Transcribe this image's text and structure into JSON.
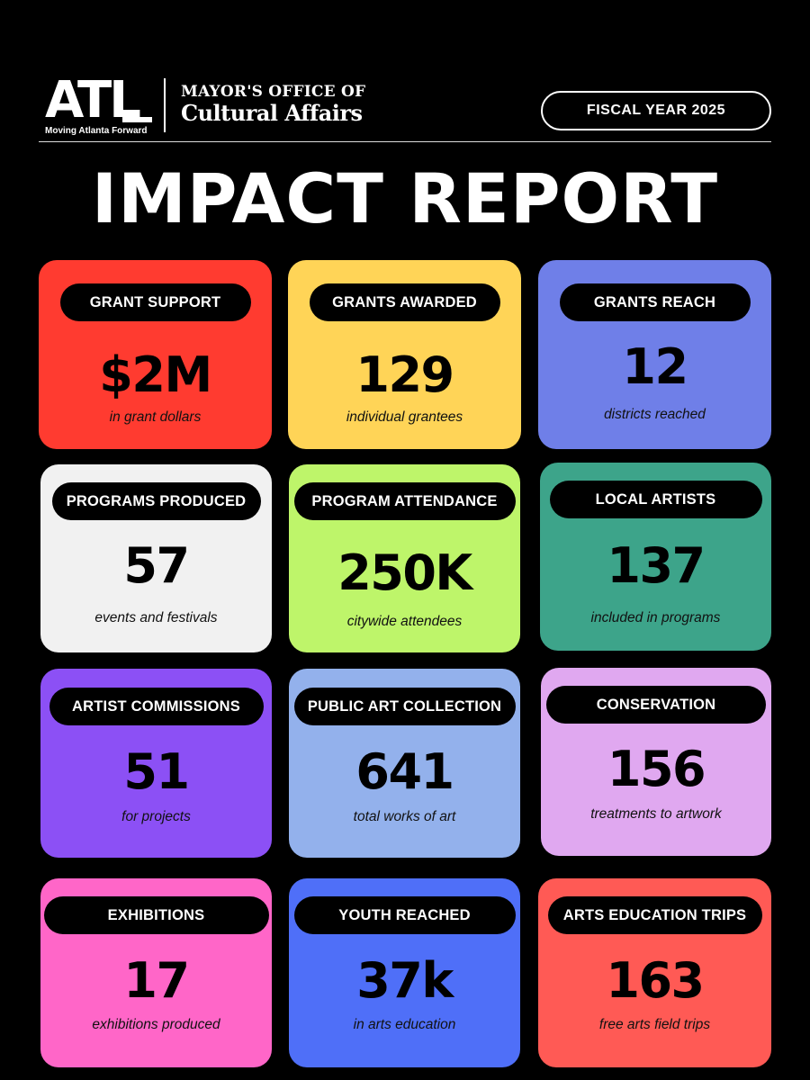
{
  "header": {
    "logo_text": "ATL",
    "tagline": "Moving Atlanta Forward",
    "office_line1": "MAYOR'S OFFICE OF",
    "office_line2": "Cultural Affairs",
    "fiscal_year": "FISCAL YEAR 2025"
  },
  "title": "IMPACT REPORT",
  "cards": [
    {
      "label": "GRANT SUPPORT",
      "value": "$2M",
      "caption": "in grant dollars",
      "color": "#FF3B30"
    },
    {
      "label": "GRANTS AWARDED",
      "value": "129",
      "caption": "individual grantees",
      "color": "#FFD457"
    },
    {
      "label": "GRANTS REACH",
      "value": "12",
      "caption": "districts reached",
      "color": "#6F7FE8"
    },
    {
      "label": "PROGRAMS PRODUCED",
      "value": "57",
      "caption": "events and festivals",
      "color": "#F1F1F1"
    },
    {
      "label": "PROGRAM ATTENDANCE",
      "value": "250K",
      "caption": "citywide attendees",
      "color": "#BEF56A"
    },
    {
      "label": "LOCAL ARTISTS",
      "value": "137",
      "caption": "included in programs",
      "color": "#3DA48A"
    },
    {
      "label": "ARTIST COMMISSIONS",
      "value": "51",
      "caption": "for projects",
      "color": "#8C50F5"
    },
    {
      "label": "PUBLIC ART COLLECTION",
      "value": "641",
      "caption": "total works of art",
      "color": "#93B1EC"
    },
    {
      "label": "CONSERVATION",
      "value": "156",
      "caption": "treatments to artwork",
      "color": "#E0A8F0"
    },
    {
      "label": "EXHIBITIONS",
      "value": "17",
      "caption": "exhibitions produced",
      "color": "#FF66C8"
    },
    {
      "label": "YOUTH REACHED",
      "value": "37k",
      "caption": "in arts education",
      "color": "#4F6FF8"
    },
    {
      "label": "ARTS EDUCATION TRIPS",
      "value": "163",
      "caption": "free arts field trips",
      "color": "#FF5A55"
    }
  ]
}
